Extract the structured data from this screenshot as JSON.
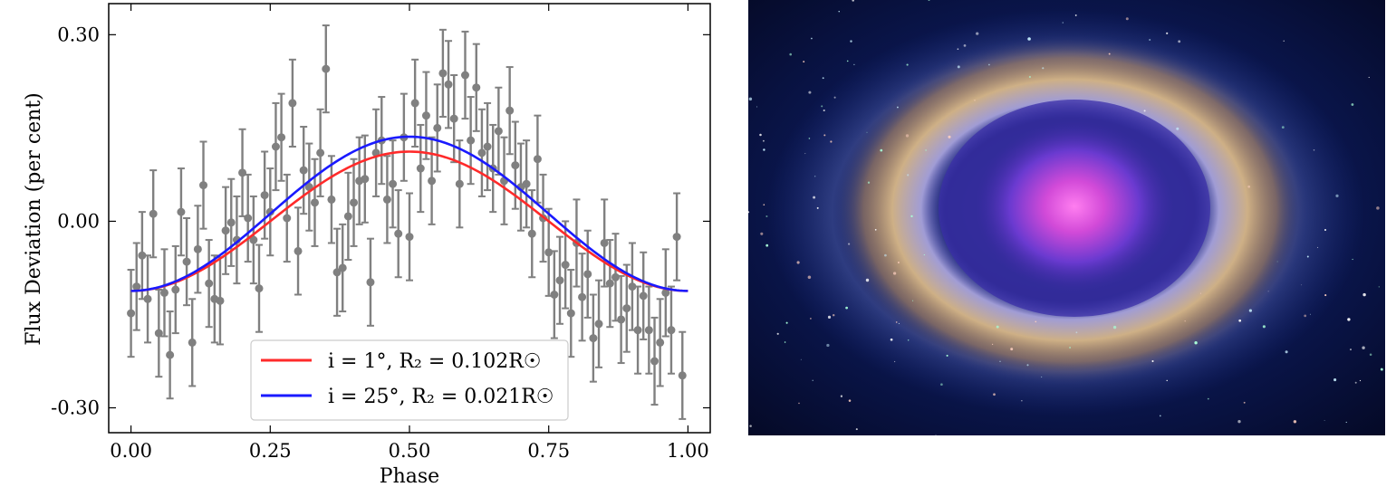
{
  "chart_data": {
    "type": "scatter",
    "xlabel": "Phase",
    "ylabel": "Flux Deviation (per cent)",
    "xlim": [
      -0.04,
      1.04
    ],
    "ylim": [
      -0.34,
      0.35
    ],
    "x_ticks": [
      "0.00",
      "0.25",
      "0.50",
      "0.75",
      "1.00"
    ],
    "x_tick_values": [
      0.0,
      0.25,
      0.5,
      0.75,
      1.0
    ],
    "y_ticks": [
      "0.30",
      "0.00",
      "-0.30"
    ],
    "y_tick_values": [
      0.3,
      0.0,
      -0.3
    ],
    "grid": false,
    "legend_placement": "lower-center",
    "observations": {
      "color": "#808080",
      "error": 0.07,
      "points": [
        [
          0.0,
          -0.148
        ],
        [
          0.01,
          -0.105
        ],
        [
          0.02,
          -0.055
        ],
        [
          0.03,
          -0.125
        ],
        [
          0.04,
          0.012
        ],
        [
          0.05,
          -0.18
        ],
        [
          0.06,
          -0.115
        ],
        [
          0.07,
          -0.215
        ],
        [
          0.08,
          -0.11
        ],
        [
          0.09,
          0.015
        ],
        [
          0.1,
          -0.065
        ],
        [
          0.11,
          -0.195
        ],
        [
          0.12,
          -0.045
        ],
        [
          0.13,
          0.058
        ],
        [
          0.14,
          -0.1
        ],
        [
          0.15,
          -0.125
        ],
        [
          0.16,
          -0.128
        ],
        [
          0.17,
          -0.015
        ],
        [
          0.18,
          -0.002
        ],
        [
          0.19,
          -0.03
        ],
        [
          0.2,
          0.078
        ],
        [
          0.21,
          0.005
        ],
        [
          0.22,
          -0.03
        ],
        [
          0.23,
          -0.108
        ],
        [
          0.24,
          0.042
        ],
        [
          0.25,
          0.015
        ],
        [
          0.26,
          0.12
        ],
        [
          0.27,
          0.135
        ],
        [
          0.28,
          0.005
        ],
        [
          0.29,
          0.19
        ],
        [
          0.3,
          -0.048
        ],
        [
          0.31,
          0.082
        ],
        [
          0.32,
          0.055
        ],
        [
          0.33,
          0.03
        ],
        [
          0.34,
          0.11
        ],
        [
          0.35,
          0.245
        ],
        [
          0.36,
          0.035
        ],
        [
          0.37,
          -0.082
        ],
        [
          0.38,
          -0.075
        ],
        [
          0.39,
          0.008
        ],
        [
          0.4,
          0.03
        ],
        [
          0.41,
          0.065
        ],
        [
          0.42,
          0.068
        ],
        [
          0.43,
          -0.098
        ],
        [
          0.44,
          0.11
        ],
        [
          0.45,
          0.13
        ],
        [
          0.46,
          0.035
        ],
        [
          0.47,
          0.06
        ],
        [
          0.48,
          -0.02
        ],
        [
          0.49,
          0.135
        ],
        [
          0.5,
          -0.025
        ],
        [
          0.51,
          0.19
        ],
        [
          0.52,
          0.085
        ],
        [
          0.53,
          0.17
        ],
        [
          0.54,
          0.065
        ],
        [
          0.55,
          0.15
        ],
        [
          0.56,
          0.238
        ],
        [
          0.57,
          0.22
        ],
        [
          0.58,
          0.165
        ],
        [
          0.59,
          0.06
        ],
        [
          0.6,
          0.235
        ],
        [
          0.61,
          0.13
        ],
        [
          0.62,
          0.215
        ],
        [
          0.63,
          0.11
        ],
        [
          0.64,
          0.12
        ],
        [
          0.65,
          0.085
        ],
        [
          0.66,
          0.145
        ],
        [
          0.67,
          0.065
        ],
        [
          0.68,
          0.178
        ],
        [
          0.69,
          0.09
        ],
        [
          0.7,
          0.055
        ],
        [
          0.71,
          0.06
        ],
        [
          0.72,
          -0.02
        ],
        [
          0.73,
          0.1
        ],
        [
          0.74,
          0.005
        ],
        [
          0.75,
          -0.05
        ],
        [
          0.76,
          -0.118
        ],
        [
          0.77,
          -0.095
        ],
        [
          0.78,
          -0.07
        ],
        [
          0.79,
          -0.148
        ],
        [
          0.8,
          -0.035
        ],
        [
          0.81,
          -0.122
        ],
        [
          0.82,
          -0.085
        ],
        [
          0.83,
          -0.188
        ],
        [
          0.84,
          -0.165
        ],
        [
          0.85,
          -0.035
        ],
        [
          0.86,
          -0.1
        ],
        [
          0.87,
          -0.09
        ],
        [
          0.88,
          -0.158
        ],
        [
          0.89,
          -0.14
        ],
        [
          0.9,
          -0.105
        ],
        [
          0.91,
          -0.175
        ],
        [
          0.92,
          -0.12
        ],
        [
          0.93,
          -0.175
        ],
        [
          0.94,
          -0.225
        ],
        [
          0.95,
          -0.195
        ],
        [
          0.96,
          -0.115
        ],
        [
          0.97,
          -0.175
        ],
        [
          0.98,
          -0.025
        ],
        [
          0.99,
          -0.248
        ]
      ]
    },
    "series": [
      {
        "name": "i = 1°, R₂ = 0.102R☉",
        "color": "#ff2a2a",
        "model": "cosine",
        "mean": 0.0,
        "amplitude": 0.112
      },
      {
        "name": "i = 25°, R₂ = 0.021R☉",
        "color": "#1a1aff",
        "model": "cosine",
        "mean": 0.012,
        "amplitude": 0.124
      }
    ]
  },
  "image": {
    "subject": "nebula-photo",
    "colors": {
      "space": "#071040",
      "ring_outer": "#d9b27a",
      "ring_inner": "#8fa0e8",
      "core": "#d94fd0"
    }
  }
}
